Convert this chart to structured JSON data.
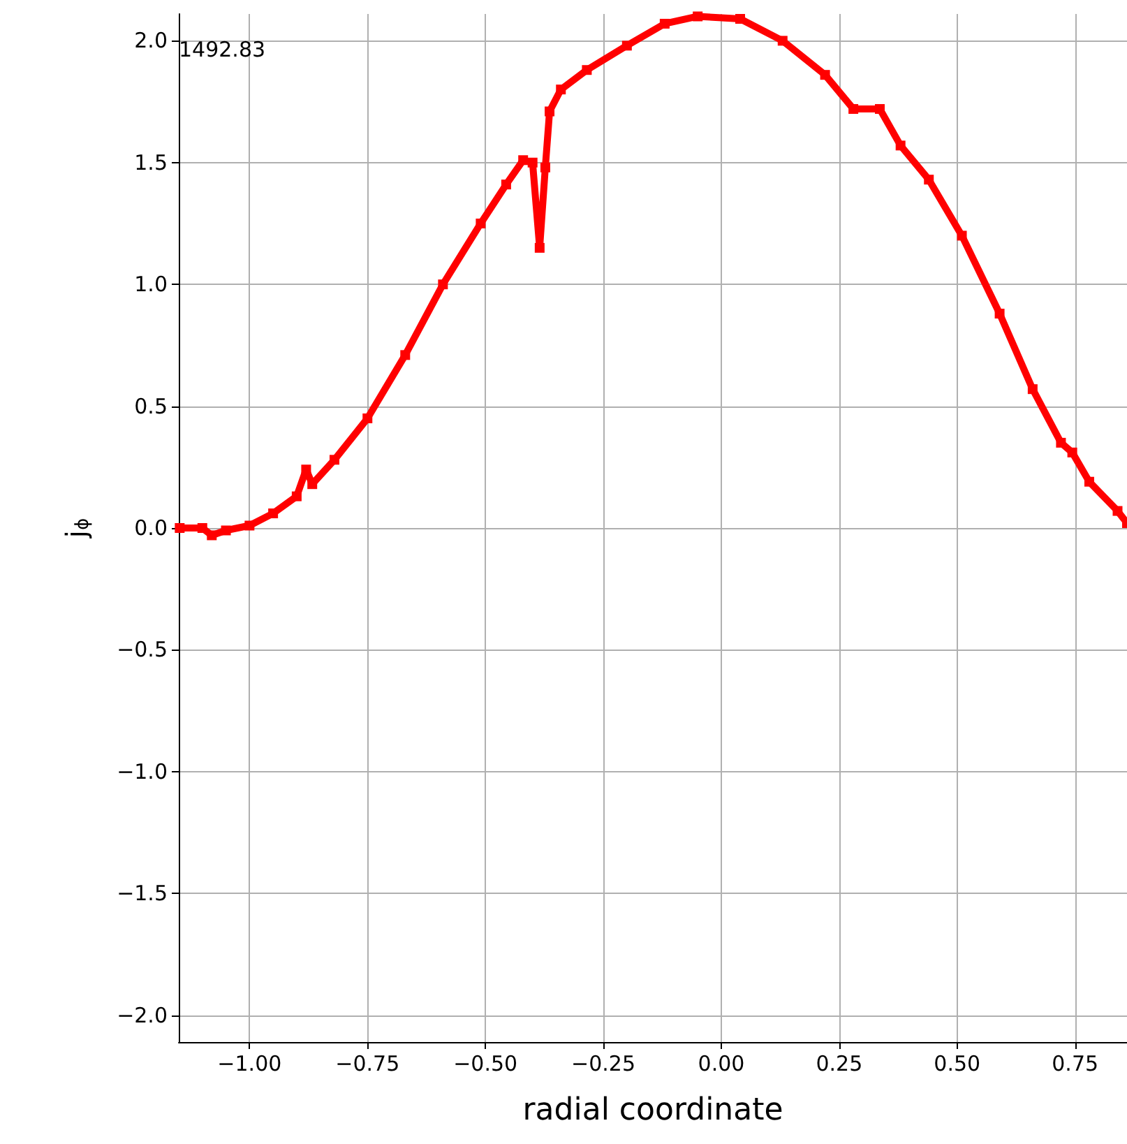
{
  "chart_data": {
    "type": "line",
    "xlabel": "radial coordinate",
    "ylabel": "j$_{ϕ}$",
    "annotations": [
      "1492.83"
    ],
    "x": [
      -1.148,
      -1.1,
      -1.08,
      -1.05,
      -1.0,
      -0.95,
      -0.9,
      -0.88,
      -0.867,
      -0.82,
      -0.75,
      -0.67,
      -0.59,
      -0.51,
      -0.456,
      -0.42,
      -0.4,
      -0.385,
      -0.373,
      -0.364,
      -0.34,
      -0.285,
      -0.2,
      -0.12,
      -0.05,
      0.04,
      0.13,
      0.22,
      0.28,
      0.336,
      0.38,
      0.44,
      0.51,
      0.59,
      0.66,
      0.72,
      0.744,
      0.78,
      0.84,
      0.86
    ],
    "series": [
      {
        "color": "#ff0000",
        "values": [
          0.0,
          0.0,
          -0.03,
          -0.01,
          0.01,
          0.06,
          0.13,
          0.24,
          0.18,
          0.28,
          0.45,
          0.71,
          1.0,
          1.25,
          1.41,
          1.51,
          1.5,
          1.15,
          1.48,
          1.71,
          1.8,
          1.88,
          1.98,
          2.07,
          2.1,
          2.09,
          2.0,
          1.86,
          1.72,
          1.72,
          1.57,
          1.43,
          1.2,
          0.88,
          0.57,
          0.35,
          0.31,
          0.19,
          0.07,
          0.02
        ]
      }
    ],
    "xlim": [
      -1.15,
      0.86
    ],
    "ylim": [
      -2.11,
      2.11
    ],
    "xticks": [
      {
        "value": -1.0,
        "label": "−1.00"
      },
      {
        "value": -0.75,
        "label": "−0.75"
      },
      {
        "value": -0.5,
        "label": "−0.50"
      },
      {
        "value": -0.25,
        "label": "−0.25"
      },
      {
        "value": 0,
        "label": "0.00"
      },
      {
        "value": 0.25,
        "label": "0.25"
      },
      {
        "value": 0.5,
        "label": "0.50"
      },
      {
        "value": 0.75,
        "label": "0.75"
      }
    ],
    "yticks": [
      {
        "value": -2.0,
        "label": "−2.0"
      },
      {
        "value": -1.5,
        "label": "−1.5"
      },
      {
        "value": -1.0,
        "label": "−1.0"
      },
      {
        "value": -0.5,
        "label": "−0.5"
      },
      {
        "value": 0,
        "label": "0.0"
      },
      {
        "value": 0.5,
        "label": "0.5"
      },
      {
        "value": 1.0,
        "label": "1.0"
      },
      {
        "value": 1.5,
        "label": "1.5"
      },
      {
        "value": 2.0,
        "label": "2.0"
      }
    ],
    "grid": true,
    "marker": "square",
    "line_style": "solid"
  }
}
